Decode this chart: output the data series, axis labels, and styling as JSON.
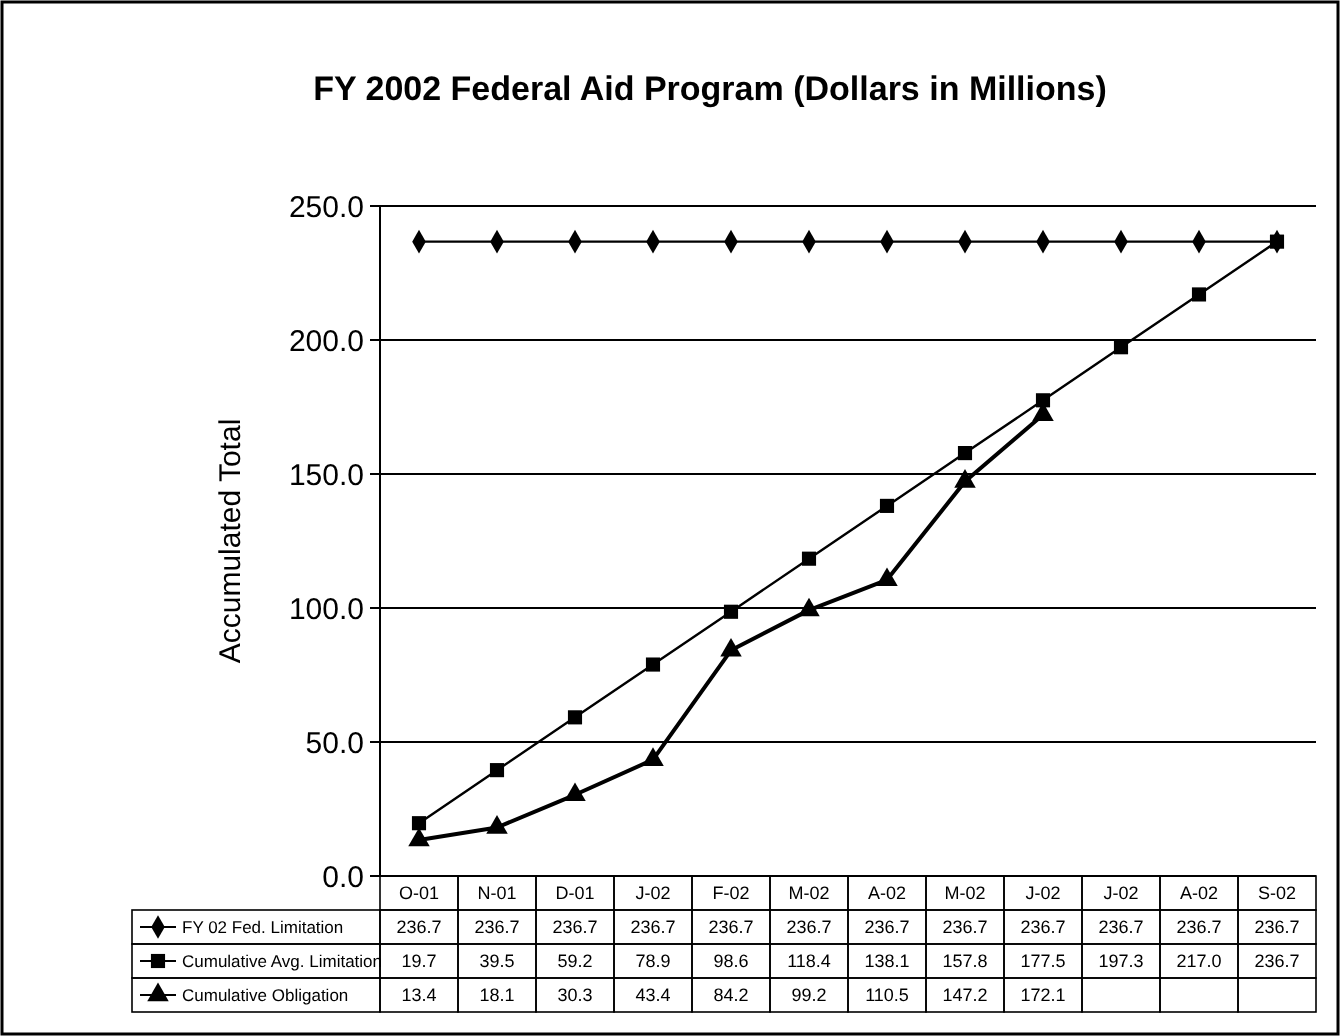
{
  "chart_data": {
    "type": "line",
    "title": "FY 2002 Federal Aid Program (Dollars in Millions)",
    "ylabel": "Accumulated Total",
    "categories": [
      "O-01",
      "N-01",
      "D-01",
      "J-02",
      "F-02",
      "M-02",
      "A-02",
      "M-02",
      "J-02",
      "J-02",
      "A-02",
      "S-02"
    ],
    "ylim": [
      0,
      250
    ],
    "yticks": [
      {
        "value": 0,
        "label": "0.0"
      },
      {
        "value": 50,
        "label": "50.0"
      },
      {
        "value": 100,
        "label": "100.0"
      },
      {
        "value": 150,
        "label": "150.0"
      },
      {
        "value": 200,
        "label": "200.0"
      },
      {
        "value": 250,
        "label": "250.0"
      }
    ],
    "grid": "y",
    "legend": "bottom",
    "line_style": "solid",
    "series": [
      {
        "name": "FY 02 Fed. Limitation",
        "color": "#000000",
        "marker": "diamond",
        "values": [
          236.7,
          236.7,
          236.7,
          236.7,
          236.7,
          236.7,
          236.7,
          236.7,
          236.7,
          236.7,
          236.7,
          236.7
        ],
        "value_labels": [
          "236.7",
          "236.7",
          "236.7",
          "236.7",
          "236.7",
          "236.7",
          "236.7",
          "236.7",
          "236.7",
          "236.7",
          "236.7",
          "236.7"
        ]
      },
      {
        "name": "Cumulative Avg. Limitation",
        "color": "#000000",
        "marker": "square",
        "values": [
          19.7,
          39.5,
          59.2,
          78.9,
          98.6,
          118.4,
          138.1,
          157.8,
          177.5,
          197.3,
          217.0,
          236.7
        ],
        "value_labels": [
          "19.7",
          "39.5",
          "59.2",
          "78.9",
          "98.6",
          "118.4",
          "138.1",
          "157.8",
          "177.5",
          "197.3",
          "217.0",
          "236.7"
        ]
      },
      {
        "name": "Cumulative Obligation",
        "color": "#000000",
        "marker": "triangle",
        "values": [
          13.4,
          18.1,
          30.3,
          43.4,
          84.2,
          99.2,
          110.5,
          147.2,
          172.1,
          null,
          null,
          null
        ],
        "value_labels": [
          "13.4",
          "18.1",
          "30.3",
          "43.4",
          "84.2",
          "99.2",
          "110.5",
          "147.2",
          "172.1",
          null,
          null,
          null
        ]
      }
    ]
  }
}
